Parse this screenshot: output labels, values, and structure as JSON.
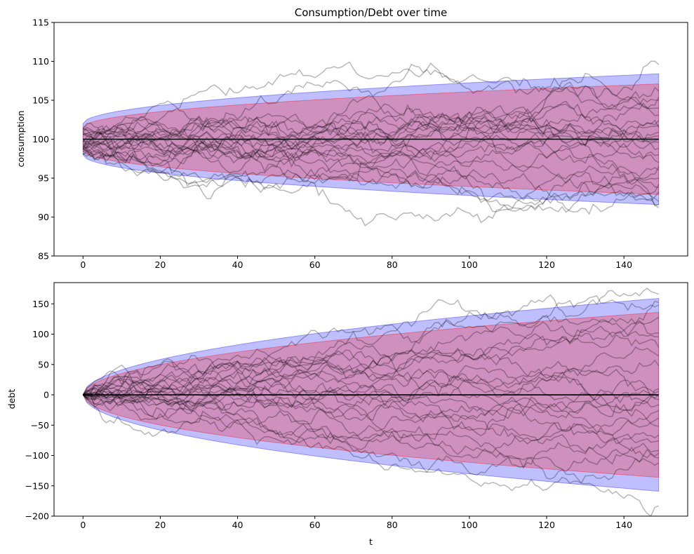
{
  "chart_data": [
    {
      "type": "line",
      "title": "Consumption/Debt over time",
      "xlabel": "",
      "ylabel": "consumption",
      "xlim": [
        -7.5,
        156.5
      ],
      "ylim": [
        85,
        115
      ],
      "xticks": [
        0,
        20,
        40,
        60,
        80,
        100,
        120,
        140
      ],
      "yticks": [
        85,
        90,
        95,
        100,
        105,
        110,
        115
      ],
      "mean": 100,
      "bands": [
        {
          "color": "#0000ff",
          "opacity": 0.25,
          "t": [
            0,
            149
          ],
          "upper_start": 102.0,
          "upper_end": 108.4,
          "lower_start": 98.0,
          "lower_end": 91.6
        },
        {
          "color": "#ff0000",
          "opacity": 0.25,
          "t": [
            0,
            149
          ],
          "upper_start": 101.5,
          "upper_end": 107.1,
          "lower_start": 98.5,
          "lower_end": 92.9
        }
      ],
      "sample_paths": {
        "count": 25,
        "color": "#000000",
        "opacity": 0.28,
        "t": [
          0,
          149
        ],
        "start_range": [
          98.0,
          101.8
        ],
        "final_values": [
          109.6,
          106.2,
          105.4,
          105.0,
          104.0,
          103.1,
          102.4,
          101.8,
          101.5,
          100.9,
          100.0,
          99.6,
          98.8,
          98.0,
          97.0,
          96.5,
          96.0,
          95.0,
          94.2,
          93.8,
          93.2,
          92.0,
          91.6,
          91.2,
          100.4
        ]
      }
    },
    {
      "type": "line",
      "title": "",
      "xlabel": "t",
      "ylabel": "debt",
      "xlim": [
        -7.5,
        156.5
      ],
      "ylim": [
        -200,
        185
      ],
      "xticks": [
        0,
        20,
        40,
        60,
        80,
        100,
        120,
        140
      ],
      "yticks": [
        -200,
        -150,
        -100,
        -50,
        0,
        50,
        100,
        150
      ],
      "mean": 0,
      "bands": [
        {
          "color": "#0000ff",
          "opacity": 0.25,
          "t": [
            0,
            149
          ],
          "upper_end": 159,
          "lower_end": -159
        },
        {
          "color": "#ff0000",
          "opacity": 0.25,
          "t": [
            0,
            149
          ],
          "upper_end": 136,
          "lower_end": -136
        }
      ],
      "sample_paths": {
        "count": 25,
        "color": "#000000",
        "opacity": 0.28,
        "t": [
          0,
          149
        ],
        "start": 0,
        "final_values": [
          166,
          152,
          148,
          128,
          102,
          96,
          78,
          64,
          48,
          10,
          6,
          1,
          -3,
          -8,
          -16,
          -26,
          -38,
          -52,
          -66,
          -76,
          -92,
          -96,
          -104,
          -112,
          -183
        ]
      }
    }
  ]
}
